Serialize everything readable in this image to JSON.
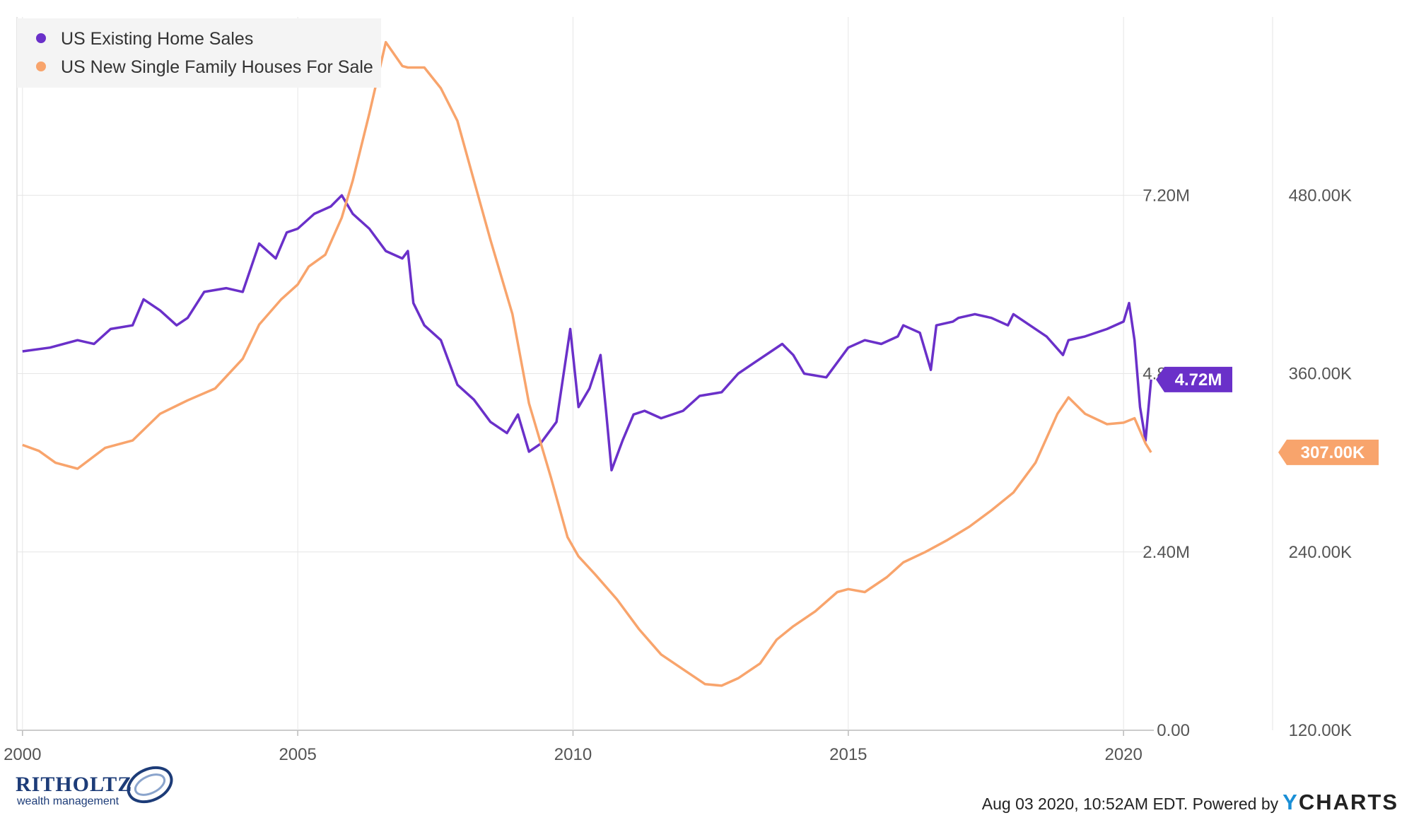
{
  "chart_data": {
    "type": "line",
    "title": "",
    "x_tick_labels": [
      "2000",
      "2005",
      "2010",
      "2015",
      "2020"
    ],
    "x_ticks": [
      2000,
      2005,
      2010,
      2015,
      2020
    ],
    "xlim": [
      1999.9,
      2020.55
    ],
    "y_left": {
      "ticks": [
        0,
        2.4,
        4.8,
        7.2
      ],
      "tick_labels": [
        "0.00",
        "2.40M",
        "4.80M",
        "7.20M"
      ],
      "lim": [
        0,
        9.6
      ]
    },
    "y_right": {
      "ticks": [
        120,
        240,
        360,
        480
      ],
      "tick_labels": [
        "120.00K",
        "240.00K",
        "360.00K",
        "480.00K"
      ],
      "lim": [
        120,
        600
      ]
    },
    "grid": true,
    "legend_position": "top-left",
    "series": [
      {
        "name": "US Existing Home Sales",
        "color": "#6a30c9",
        "axis": "left",
        "unit": "M",
        "last_value_label": "4.72M",
        "last_value": 4.72,
        "points": [
          [
            2000.0,
            5.1
          ],
          [
            2000.5,
            5.15
          ],
          [
            2001.0,
            5.25
          ],
          [
            2001.3,
            5.2
          ],
          [
            2001.6,
            5.4
          ],
          [
            2002.0,
            5.45
          ],
          [
            2002.2,
            5.8
          ],
          [
            2002.5,
            5.65
          ],
          [
            2002.8,
            5.45
          ],
          [
            2003.0,
            5.55
          ],
          [
            2003.3,
            5.9
          ],
          [
            2003.7,
            5.95
          ],
          [
            2004.0,
            5.9
          ],
          [
            2004.3,
            6.55
          ],
          [
            2004.6,
            6.35
          ],
          [
            2004.8,
            6.7
          ],
          [
            2005.0,
            6.75
          ],
          [
            2005.3,
            6.95
          ],
          [
            2005.6,
            7.05
          ],
          [
            2005.8,
            7.2
          ],
          [
            2006.0,
            6.95
          ],
          [
            2006.3,
            6.75
          ],
          [
            2006.6,
            6.45
          ],
          [
            2006.9,
            6.35
          ],
          [
            2007.0,
            6.45
          ],
          [
            2007.1,
            5.75
          ],
          [
            2007.3,
            5.45
          ],
          [
            2007.6,
            5.25
          ],
          [
            2007.9,
            4.65
          ],
          [
            2008.2,
            4.45
          ],
          [
            2008.5,
            4.15
          ],
          [
            2008.8,
            4.0
          ],
          [
            2009.0,
            4.25
          ],
          [
            2009.2,
            3.75
          ],
          [
            2009.4,
            3.85
          ],
          [
            2009.7,
            4.15
          ],
          [
            2009.95,
            5.4
          ],
          [
            2010.1,
            4.35
          ],
          [
            2010.3,
            4.6
          ],
          [
            2010.5,
            5.05
          ],
          [
            2010.6,
            4.3
          ],
          [
            2010.7,
            3.5
          ],
          [
            2010.9,
            3.9
          ],
          [
            2011.1,
            4.25
          ],
          [
            2011.3,
            4.3
          ],
          [
            2011.6,
            4.2
          ],
          [
            2012.0,
            4.3
          ],
          [
            2012.3,
            4.5
          ],
          [
            2012.7,
            4.55
          ],
          [
            2013.0,
            4.8
          ],
          [
            2013.3,
            4.95
          ],
          [
            2013.6,
            5.1
          ],
          [
            2013.8,
            5.2
          ],
          [
            2014.0,
            5.05
          ],
          [
            2014.2,
            4.8
          ],
          [
            2014.6,
            4.75
          ],
          [
            2015.0,
            5.15
          ],
          [
            2015.3,
            5.25
          ],
          [
            2015.6,
            5.2
          ],
          [
            2015.9,
            5.3
          ],
          [
            2016.0,
            5.45
          ],
          [
            2016.3,
            5.35
          ],
          [
            2016.5,
            4.85
          ],
          [
            2016.6,
            5.45
          ],
          [
            2016.9,
            5.5
          ],
          [
            2017.0,
            5.55
          ],
          [
            2017.3,
            5.6
          ],
          [
            2017.6,
            5.55
          ],
          [
            2017.9,
            5.45
          ],
          [
            2018.0,
            5.6
          ],
          [
            2018.3,
            5.45
          ],
          [
            2018.6,
            5.3
          ],
          [
            2018.9,
            5.05
          ],
          [
            2019.0,
            5.25
          ],
          [
            2019.3,
            5.3
          ],
          [
            2019.7,
            5.4
          ],
          [
            2020.0,
            5.5
          ],
          [
            2020.1,
            5.75
          ],
          [
            2020.2,
            5.25
          ],
          [
            2020.3,
            4.35
          ],
          [
            2020.4,
            3.9
          ],
          [
            2020.5,
            4.72
          ]
        ]
      },
      {
        "name": "US New Single Family Houses For Sale",
        "color": "#f8a46c",
        "axis": "right",
        "unit": "K",
        "last_value_label": "307.00K",
        "last_value": 307,
        "points": [
          [
            2000.0,
            312
          ],
          [
            2000.3,
            308
          ],
          [
            2000.6,
            300
          ],
          [
            2001.0,
            296
          ],
          [
            2001.5,
            310
          ],
          [
            2002.0,
            315
          ],
          [
            2002.5,
            333
          ],
          [
            2003.0,
            342
          ],
          [
            2003.5,
            350
          ],
          [
            2004.0,
            370
          ],
          [
            2004.3,
            393
          ],
          [
            2004.7,
            410
          ],
          [
            2005.0,
            420
          ],
          [
            2005.2,
            432
          ],
          [
            2005.5,
            440
          ],
          [
            2005.8,
            465
          ],
          [
            2006.0,
            490
          ],
          [
            2006.3,
            535
          ],
          [
            2006.6,
            583
          ],
          [
            2006.9,
            567
          ],
          [
            2007.0,
            566
          ],
          [
            2007.3,
            566
          ],
          [
            2007.6,
            552
          ],
          [
            2007.9,
            530
          ],
          [
            2008.2,
            490
          ],
          [
            2008.5,
            450
          ],
          [
            2008.9,
            400
          ],
          [
            2009.2,
            340
          ],
          [
            2009.6,
            290
          ],
          [
            2009.9,
            250
          ],
          [
            2010.1,
            237
          ],
          [
            2010.4,
            225
          ],
          [
            2010.8,
            208
          ],
          [
            2011.2,
            188
          ],
          [
            2011.6,
            171
          ],
          [
            2012.0,
            161
          ],
          [
            2012.4,
            151
          ],
          [
            2012.7,
            150
          ],
          [
            2013.0,
            155
          ],
          [
            2013.4,
            165
          ],
          [
            2013.7,
            181
          ],
          [
            2014.0,
            190
          ],
          [
            2014.4,
            200
          ],
          [
            2014.8,
            213
          ],
          [
            2015.0,
            215
          ],
          [
            2015.3,
            213
          ],
          [
            2015.7,
            223
          ],
          [
            2016.0,
            233
          ],
          [
            2016.4,
            240
          ],
          [
            2016.8,
            248
          ],
          [
            2017.2,
            257
          ],
          [
            2017.6,
            268
          ],
          [
            2018.0,
            280
          ],
          [
            2018.4,
            300
          ],
          [
            2018.8,
            333
          ],
          [
            2019.0,
            344
          ],
          [
            2019.3,
            333
          ],
          [
            2019.7,
            326
          ],
          [
            2020.0,
            327
          ],
          [
            2020.2,
            330
          ],
          [
            2020.4,
            313
          ],
          [
            2020.5,
            307
          ]
        ]
      }
    ]
  },
  "footer": {
    "timestamp": "Aug 03 2020, 10:52AM EDT. Powered by",
    "brand_y": "Y",
    "brand_rest": "CHARTS"
  },
  "logo": {
    "name": "RITHOLTZ",
    "subtitle": "wealth management"
  }
}
